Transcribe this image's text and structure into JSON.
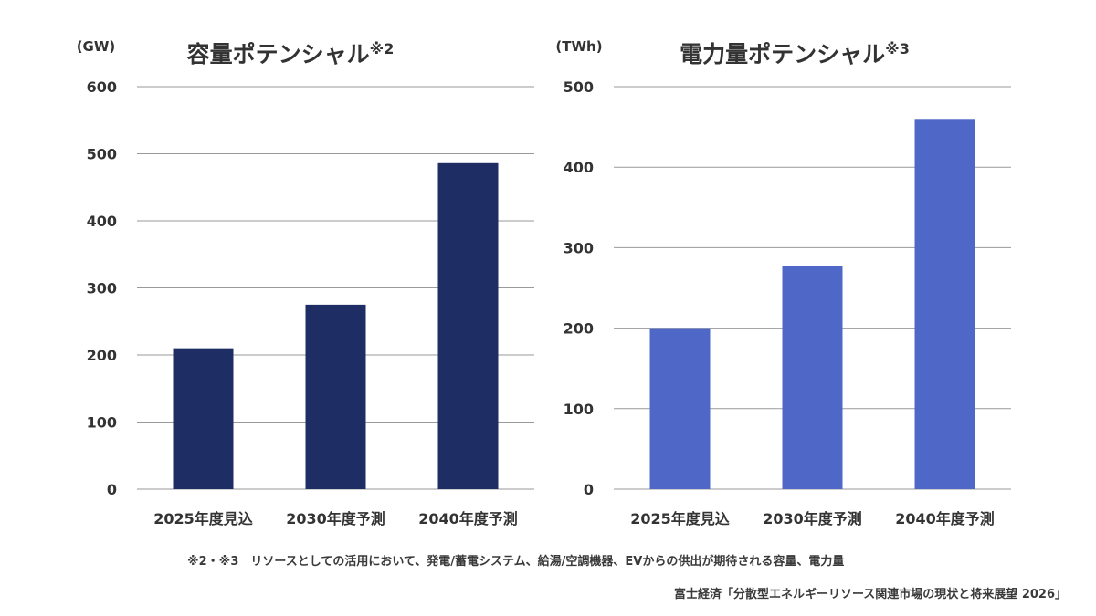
{
  "chart_data": [
    {
      "type": "bar",
      "title": "容量ポテンシャル",
      "title_note": "※2",
      "unit": "(GW)",
      "categories": [
        "2025年度見込",
        "2030年度予測",
        "2040年度予測"
      ],
      "values": [
        210,
        275,
        486
      ],
      "ylim": [
        0,
        600
      ],
      "yticks": [
        0,
        100,
        200,
        300,
        400,
        500,
        600
      ],
      "grid": true,
      "bar_color": "#1f2d65"
    },
    {
      "type": "bar",
      "title": "電力量ポテンシャル",
      "title_note": "※3",
      "unit": "(TWh)",
      "categories": [
        "2025年度見込",
        "2030年度予測",
        "2040年度予測"
      ],
      "values": [
        200,
        277,
        460
      ],
      "ylim": [
        0,
        500
      ],
      "yticks": [
        0,
        100,
        200,
        300,
        400,
        500
      ],
      "grid": true,
      "bar_color": "#4f68c8"
    }
  ],
  "footnote": "※2・※3　リソースとしての活用において、発電/蓄電システム、給湯/空調機器、EVからの供出が期待される容量、電力量",
  "source": "富士経済「分散型エネルギーリソース関連市場の現状と将来展望 2026」"
}
